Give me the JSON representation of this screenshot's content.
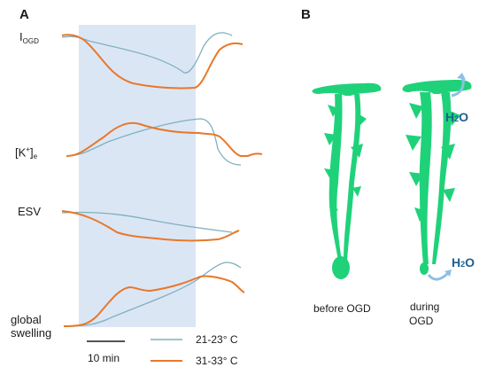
{
  "panel_a": {
    "letter": "A",
    "rows": [
      {
        "main": "I",
        "sub": "OGD"
      },
      {
        "main": "[K",
        "sup": "+",
        "close": "]",
        "sub": "e"
      },
      {
        "main": "ESV"
      },
      {
        "main": "global",
        "line2": "swelling"
      }
    ],
    "scale_bar_label": "10 min",
    "legend": [
      {
        "label": "21-23° C",
        "color": "#7fb0be"
      },
      {
        "label": "31-33° C",
        "color": "#e8782a"
      }
    ],
    "shade_color": "#dbe6f5"
  },
  "panel_b": {
    "letter": "B",
    "captions": [
      "before OGD",
      "during",
      "OGD"
    ],
    "h2o": {
      "main": "H",
      "sub": "2",
      "end": "O"
    },
    "cell_color": "#1fd27a",
    "arrow_color": "#8cc0e6"
  }
}
